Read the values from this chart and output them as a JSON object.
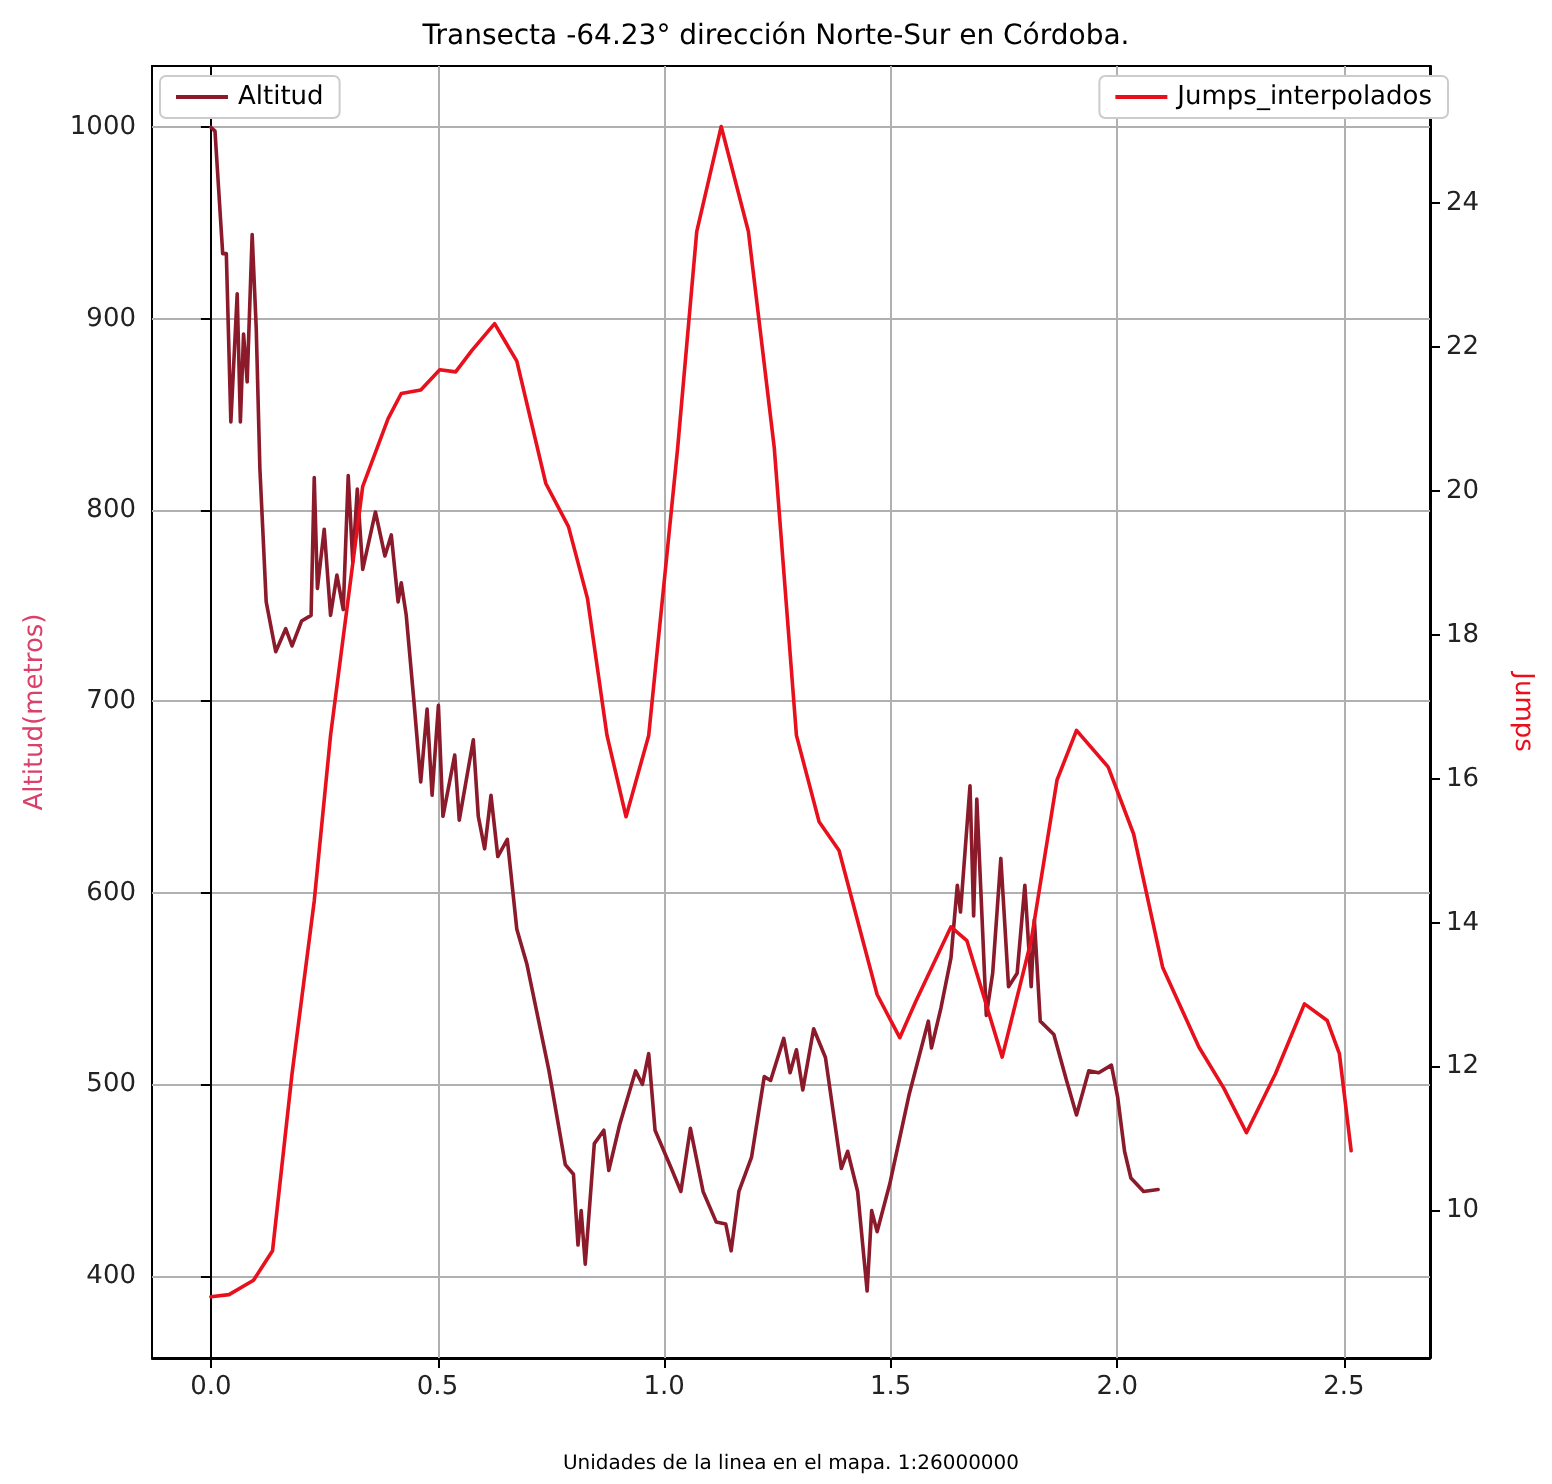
{
  "chart_data": {
    "type": "line",
    "title": "Transecta -64.23° dirección Norte-Sur en Córdoba.",
    "xlabel": "Unidades de la linea en el mapa. 1:26000000",
    "ylabel": "Altitud(metros)",
    "y2label": "Jumps",
    "xlim": [
      -0.13,
      2.69
    ],
    "xticks": [
      {
        "value": 0,
        "label": "0.0"
      },
      {
        "value": 0.5,
        "label": "0.5"
      },
      {
        "value": 1,
        "label": "1.0"
      },
      {
        "value": 1.5,
        "label": "1.5"
      },
      {
        "value": 2,
        "label": "2.0"
      },
      {
        "value": 2.5,
        "label": "2.5"
      }
    ],
    "ylim": [
      357,
      1032
    ],
    "yticks": [
      400,
      500,
      600,
      700,
      800,
      900,
      1000
    ],
    "y2lim": [
      7.95,
      25.9
    ],
    "y2ticks": [
      10,
      12,
      14,
      16,
      18,
      20,
      22,
      24
    ],
    "grid": true,
    "legend": "top",
    "marker": "none",
    "line_style": "solid",
    "series": [
      {
        "name": "Altitud",
        "color": "#8b1a2b",
        "x": [
          0,
          0.009,
          0.026,
          0.034,
          0.044,
          0.058,
          0.065,
          0.072,
          0.08,
          0.091,
          0.1,
          0.108,
          0.122,
          0.143,
          0.165,
          0.179,
          0.2,
          0.221,
          0.228,
          0.235,
          0.25,
          0.264,
          0.278,
          0.292,
          0.303,
          0.313,
          0.323,
          0.335,
          0.363,
          0.384,
          0.398,
          0.413,
          0.42,
          0.431,
          0.448,
          0.463,
          0.477,
          0.488,
          0.502,
          0.512,
          0.538,
          0.548,
          0.579,
          0.59,
          0.604,
          0.618,
          0.633,
          0.654,
          0.675,
          0.697,
          0.746,
          0.782,
          0.8,
          0.81,
          0.817,
          0.826,
          0.846,
          0.867,
          0.878,
          0.902,
          0.937,
          0.952,
          0.966,
          0.98,
          1.016,
          1.037,
          1.058,
          1.086,
          1.115,
          1.136,
          1.148,
          1.165,
          1.193,
          1.221,
          1.235,
          1.264,
          1.278,
          1.292,
          1.306,
          1.33,
          1.356,
          1.391,
          1.405,
          1.427,
          1.448,
          1.458,
          1.47,
          1.498,
          1.54,
          1.583,
          1.59,
          1.611,
          1.633,
          1.647,
          1.654,
          1.675,
          1.683,
          1.69,
          1.711,
          1.725,
          1.743,
          1.76,
          1.779,
          1.796,
          1.81,
          1.817,
          1.83,
          1.86,
          1.888,
          1.91,
          1.937,
          1.959,
          1.987,
          2.001,
          2.016,
          2.03,
          2.058,
          2.09
        ],
        "values": [
          1000,
          998,
          934,
          934,
          846,
          913,
          846,
          892,
          867,
          944,
          895,
          822,
          752,
          726,
          738,
          729,
          742,
          745,
          817,
          759,
          790,
          745,
          766,
          748,
          818,
          773,
          811,
          769,
          799,
          776,
          787,
          752,
          762,
          745,
          700,
          658,
          696,
          651,
          698,
          640,
          672,
          638,
          680,
          640,
          623,
          651,
          619,
          628,
          581,
          563,
          507,
          458,
          453,
          416,
          434,
          406,
          469,
          476,
          455,
          479,
          507,
          500,
          516,
          476,
          456,
          444,
          477,
          444,
          428,
          427,
          413,
          444,
          462,
          504,
          502,
          524,
          506,
          518,
          497,
          529,
          514,
          456,
          465,
          444,
          392,
          434,
          423,
          448,
          494,
          533,
          519,
          540,
          566,
          604,
          590,
          656,
          588,
          649,
          536,
          558,
          618,
          551,
          558,
          604,
          551,
          586,
          533,
          526,
          502,
          484,
          507,
          506,
          510,
          493,
          465,
          451,
          444,
          445
        ]
      },
      {
        "name": "Jumps_interpolados",
        "color": "#e8101c",
        "axis": "y2",
        "x": [
          0,
          0.04,
          0.094,
          0.136,
          0.179,
          0.228,
          0.264,
          0.335,
          0.391,
          0.42,
          0.463,
          0.505,
          0.54,
          0.576,
          0.626,
          0.675,
          0.739,
          0.789,
          0.831,
          0.874,
          0.916,
          0.966,
          1.03,
          1.072,
          1.126,
          1.186,
          1.243,
          1.292,
          1.342,
          1.386,
          1.47,
          1.52,
          1.555,
          1.633,
          1.668,
          1.746,
          1.81,
          1.867,
          1.91,
          1.98,
          2.036,
          2.1,
          2.18,
          2.235,
          2.285,
          2.349,
          2.413,
          2.463,
          2.49,
          2.516
        ],
        "values": [
          8.8,
          8.83,
          9.03,
          9.44,
          11.9,
          14.3,
          16.6,
          20.06,
          21.0,
          21.35,
          21.4,
          21.68,
          21.65,
          21.95,
          22.32,
          21.8,
          20.1,
          19.5,
          18.5,
          16.6,
          15.47,
          16.6,
          20.6,
          23.6,
          25.06,
          23.6,
          20.6,
          16.6,
          15.4,
          15.0,
          13.0,
          12.4,
          12.9,
          13.94,
          13.75,
          12.13,
          13.75,
          15.98,
          16.67,
          16.16,
          15.23,
          13.38,
          12.27,
          11.7,
          11.08,
          11.9,
          12.87,
          12.64,
          12.18,
          10.83
        ]
      }
    ]
  }
}
